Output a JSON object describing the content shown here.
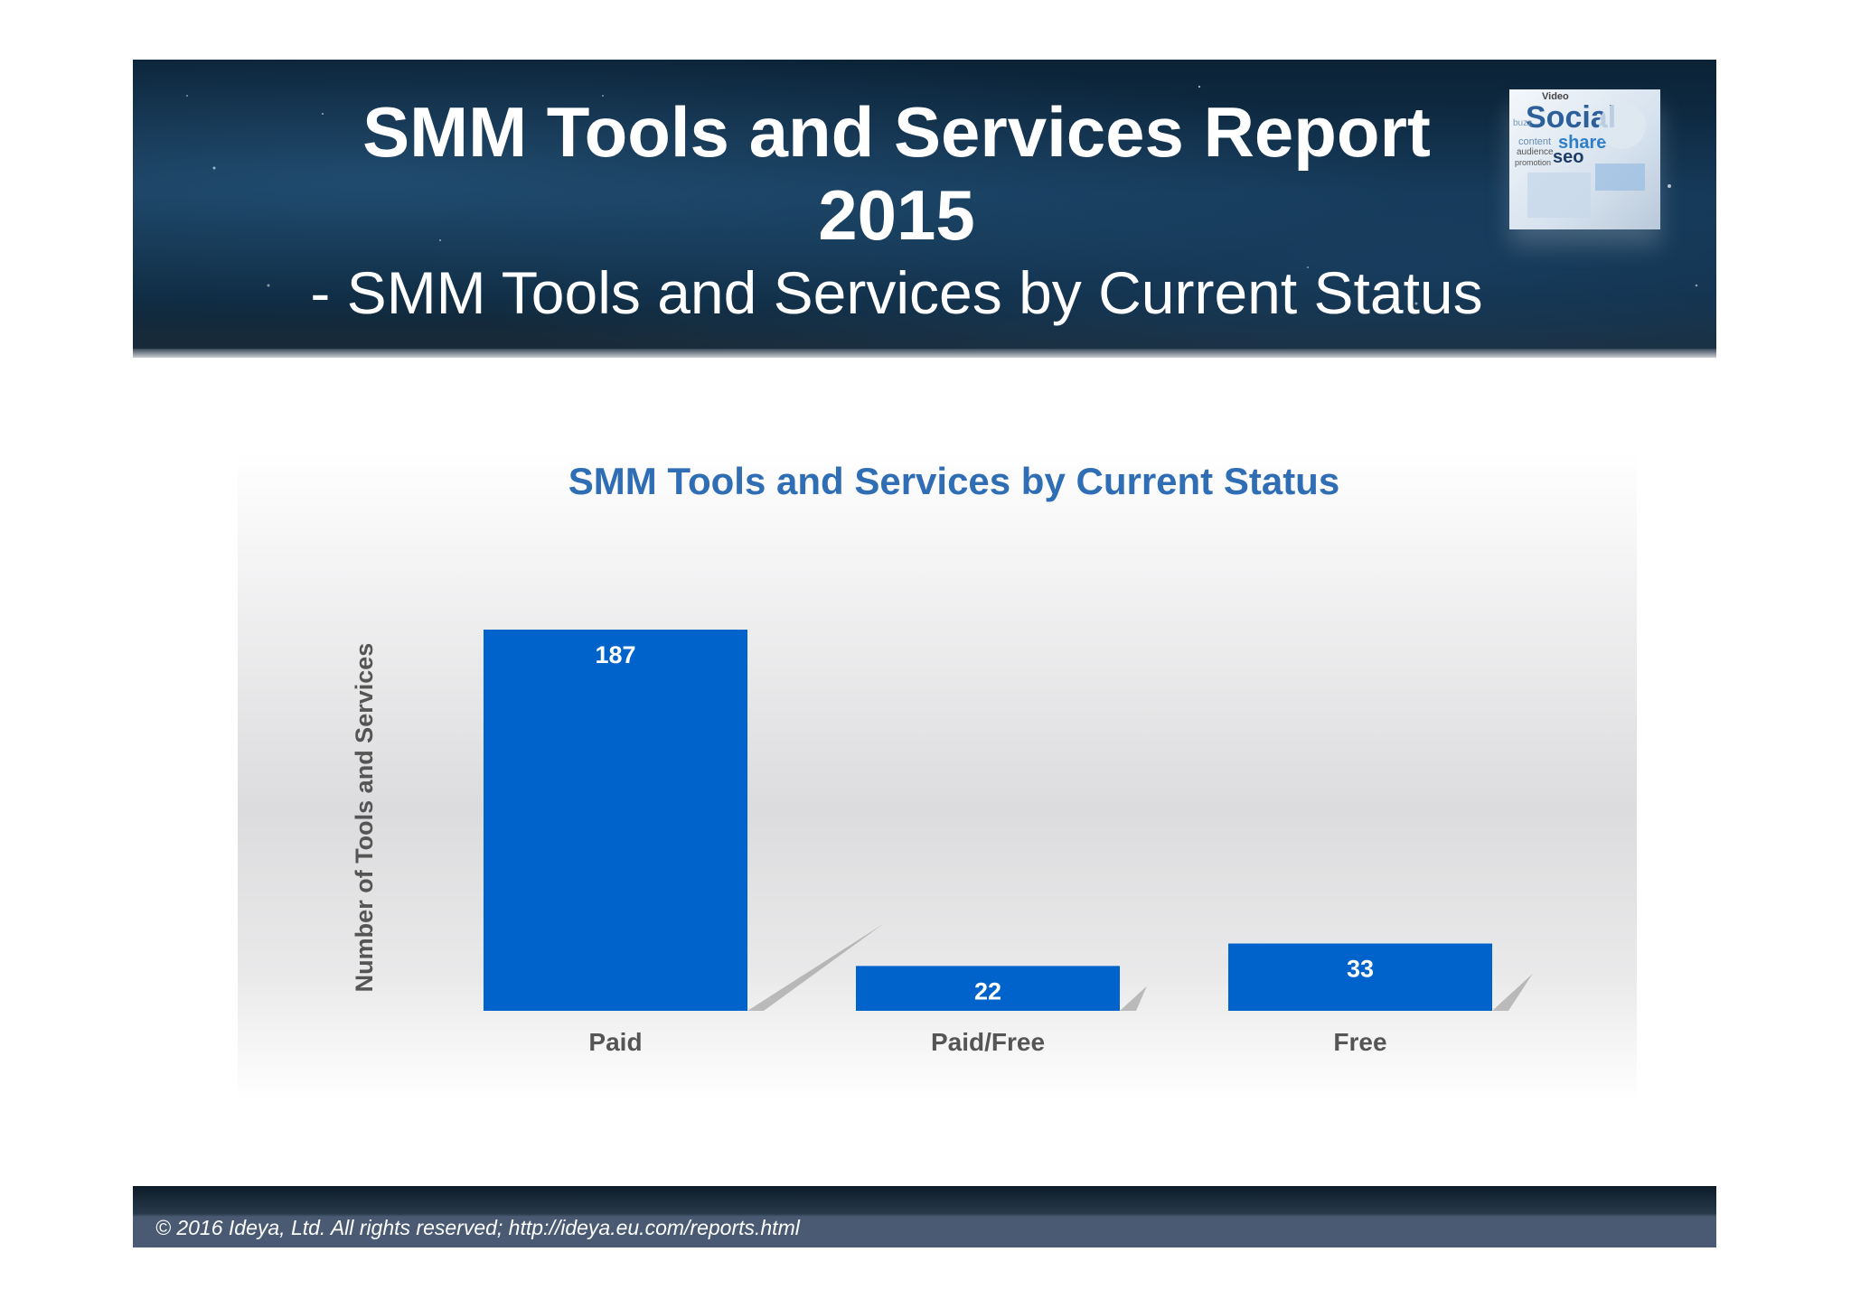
{
  "header": {
    "title_line1": "SMM Tools and Services Report",
    "title_line2": "2015",
    "subtitle": "- SMM Tools and Services by Current Status",
    "logo_words": [
      "Social",
      "share",
      "seo",
      "Video",
      "content",
      "audience",
      "buzz",
      "promotion"
    ]
  },
  "colors": {
    "bar": "#0063cc",
    "chart_title": "#2f6db5",
    "axis_text": "#555555"
  },
  "chart_data": {
    "type": "bar",
    "title": "SMM Tools and Services by Current Status",
    "xlabel": "",
    "ylabel": "Number of Tools and Services",
    "categories": [
      "Paid",
      "Paid/Free",
      "Free"
    ],
    "values": [
      187,
      22,
      33
    ],
    "data_labels": [
      "187",
      "22",
      "33"
    ],
    "ylim": [
      0,
      187
    ],
    "grid": false,
    "legend": "none"
  },
  "footer": {
    "text": "© 2016 Ideya, Ltd. All rights reserved;  http://ideya.eu.com/reports.html"
  }
}
